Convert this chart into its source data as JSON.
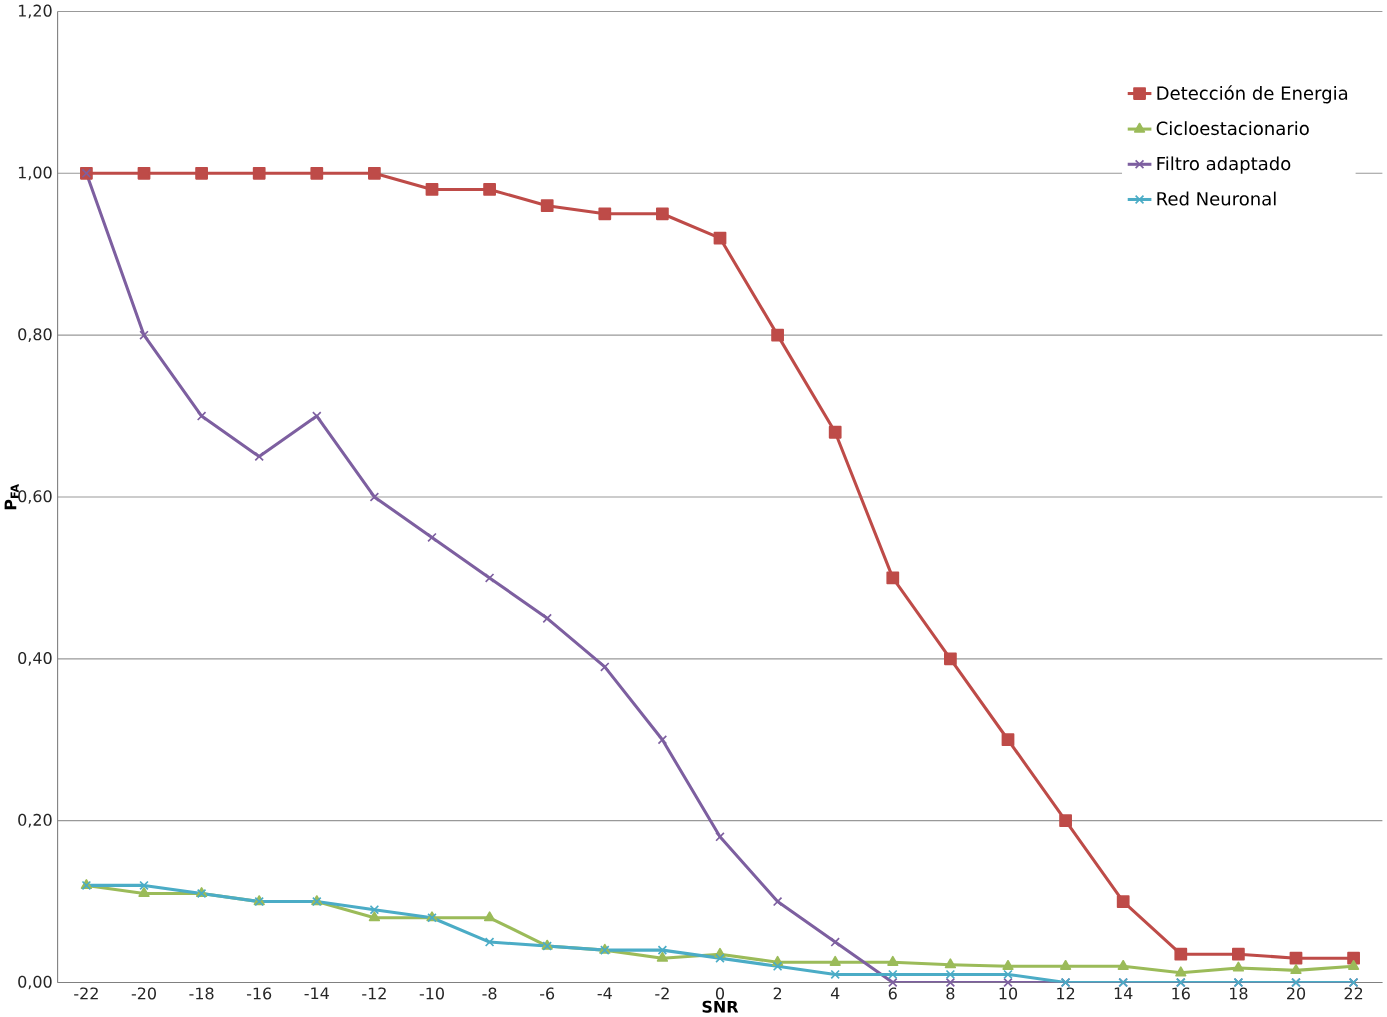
{
  "chart_data": {
    "type": "line",
    "xlabel": "SNR",
    "ylabel": "P$_{FA}$",
    "categories": [
      "-22",
      "-20",
      "-18",
      "-16",
      "-14",
      "-12",
      "-10",
      "-8",
      "-6",
      "-4",
      "-2",
      "0",
      "2",
      "4",
      "6",
      "8",
      "10",
      "12",
      "14",
      "16",
      "18",
      "20",
      "22"
    ],
    "series": [
      {
        "name": "Detección de Energia",
        "color": "#be4b48",
        "marker": "square",
        "values": [
          1,
          1,
          1,
          1,
          1,
          1,
          0.98,
          0.98,
          0.96,
          0.95,
          0.95,
          0.92,
          0.8,
          0.68,
          0.5,
          0.4,
          0.3,
          0.2,
          0.1,
          0.035,
          0.035,
          0.03,
          0.03
        ]
      },
      {
        "name": "Cicloestacionario",
        "color": "#9bbb59",
        "marker": "triangle",
        "values": [
          0.12,
          0.11,
          0.11,
          0.1,
          0.1,
          0.08,
          0.08,
          0.08,
          0.045,
          0.04,
          0.03,
          0.035,
          0.025,
          0.025,
          0.025,
          0.022,
          0.02,
          0.02,
          0.02,
          0.012,
          0.018,
          0.015,
          0.02
        ]
      },
      {
        "name": "Filtro adaptado",
        "color": "#7d5fa0",
        "marker": "cross",
        "values": [
          1,
          0.8,
          0.7,
          0.65,
          0.7,
          0.6,
          0.55,
          0.5,
          0.45,
          0.39,
          0.3,
          0.18,
          0.1,
          0.05,
          0,
          0,
          0,
          0,
          0,
          0,
          0,
          0,
          0
        ]
      },
      {
        "name": "Red Neuronal",
        "color": "#4bacc6",
        "marker": "cross",
        "values": [
          0.12,
          0.12,
          0.11,
          0.1,
          0.1,
          0.09,
          0.08,
          0.05,
          0.045,
          0.04,
          0.04,
          0.03,
          0.02,
          0.01,
          0.01,
          0.01,
          0.01,
          0,
          0,
          0,
          0,
          0,
          0
        ]
      }
    ],
    "ylim": [
      0,
      1.2
    ],
    "yticks": [
      {
        "value": 0,
        "label": "0,00"
      },
      {
        "value": 0.2,
        "label": "0,20"
      },
      {
        "value": 0.4,
        "label": "0,40"
      },
      {
        "value": 0.6,
        "label": "0,60"
      },
      {
        "value": 0.8,
        "label": "0,80"
      },
      {
        "value": 1,
        "label": "1,00"
      },
      {
        "value": 1.2,
        "label": "1,20"
      }
    ],
    "grid": "y",
    "legend": "top right",
    "line_style": "solid"
  }
}
